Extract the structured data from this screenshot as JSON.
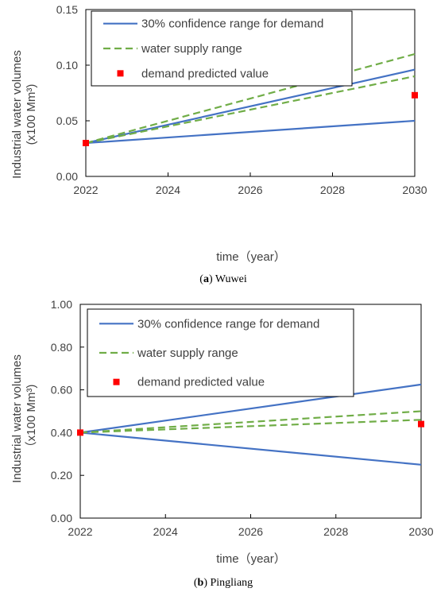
{
  "colors": {
    "confidence": "#4472C4",
    "supply": "#70AD47",
    "predicted": "#FF0000",
    "axis": "#000000",
    "text": "#404040"
  },
  "chart_data": [
    {
      "type": "line",
      "panel_label": "a",
      "caption": "Wuwei",
      "xlabel": "time（year）",
      "ylabel_line1": "Industrial water volumes",
      "ylabel_line2": "(x100 Mm³)",
      "xlim": [
        2022,
        2030
      ],
      "ylim": [
        0,
        0.15
      ],
      "xticks": [
        2022,
        2024,
        2026,
        2028,
        2030
      ],
      "yticks": [
        0,
        0.05,
        0.1,
        0.15
      ],
      "ytick_labels": [
        "0.00",
        "0.05",
        "0.10",
        "0.15"
      ],
      "grid": false,
      "legend_position": "top-left",
      "legend": [
        {
          "label": "30% confidence range for demand",
          "style": "solid"
        },
        {
          "label": "water supply range",
          "style": "dashed"
        },
        {
          "label": "demand predicted value",
          "style": "marker"
        }
      ],
      "series": [
        {
          "style": "solid",
          "points": [
            [
              2022,
              0.03
            ],
            [
              2030,
              0.096
            ]
          ]
        },
        {
          "style": "solid",
          "points": [
            [
              2022,
              0.03
            ],
            [
              2030,
              0.05
            ]
          ]
        },
        {
          "style": "dashed",
          "points": [
            [
              2022,
              0.03
            ],
            [
              2030,
              0.11
            ]
          ]
        },
        {
          "style": "dashed",
          "points": [
            [
              2022,
              0.03
            ],
            [
              2030,
              0.09
            ]
          ]
        },
        {
          "style": "marker",
          "points": [
            [
              2022,
              0.03
            ],
            [
              2030,
              0.073
            ]
          ]
        }
      ]
    },
    {
      "type": "line",
      "panel_label": "b",
      "caption": "Pingliang",
      "xlabel": "time（year）",
      "ylabel_line1": "Industrial water volumes",
      "ylabel_line2": "（x100 Mm³)",
      "xlim": [
        2022,
        2030
      ],
      "ylim": [
        0,
        1.0
      ],
      "xticks": [
        2022,
        2024,
        2026,
        2028,
        2030
      ],
      "yticks": [
        0,
        0.2,
        0.4,
        0.6,
        0.8,
        1.0
      ],
      "ytick_labels": [
        "0.00",
        "0.20",
        "0.40",
        "0.60",
        "0.80",
        "1.00"
      ],
      "grid": false,
      "legend_position": "top-left",
      "legend": [
        {
          "label": "30% confidence range for demand",
          "style": "solid"
        },
        {
          "label": "water supply range",
          "style": "dashed"
        },
        {
          "label": "demand predicted value",
          "style": "marker"
        }
      ],
      "series": [
        {
          "style": "solid",
          "points": [
            [
              2022,
              0.4
            ],
            [
              2030,
              0.625
            ]
          ]
        },
        {
          "style": "solid",
          "points": [
            [
              2022,
              0.4
            ],
            [
              2030,
              0.25
            ]
          ]
        },
        {
          "style": "dashed",
          "points": [
            [
              2022,
              0.4
            ],
            [
              2030,
              0.5
            ]
          ]
        },
        {
          "style": "dashed",
          "points": [
            [
              2022,
              0.4
            ],
            [
              2030,
              0.46
            ]
          ]
        },
        {
          "style": "marker",
          "points": [
            [
              2022,
              0.4
            ],
            [
              2030,
              0.44
            ]
          ]
        }
      ]
    }
  ]
}
